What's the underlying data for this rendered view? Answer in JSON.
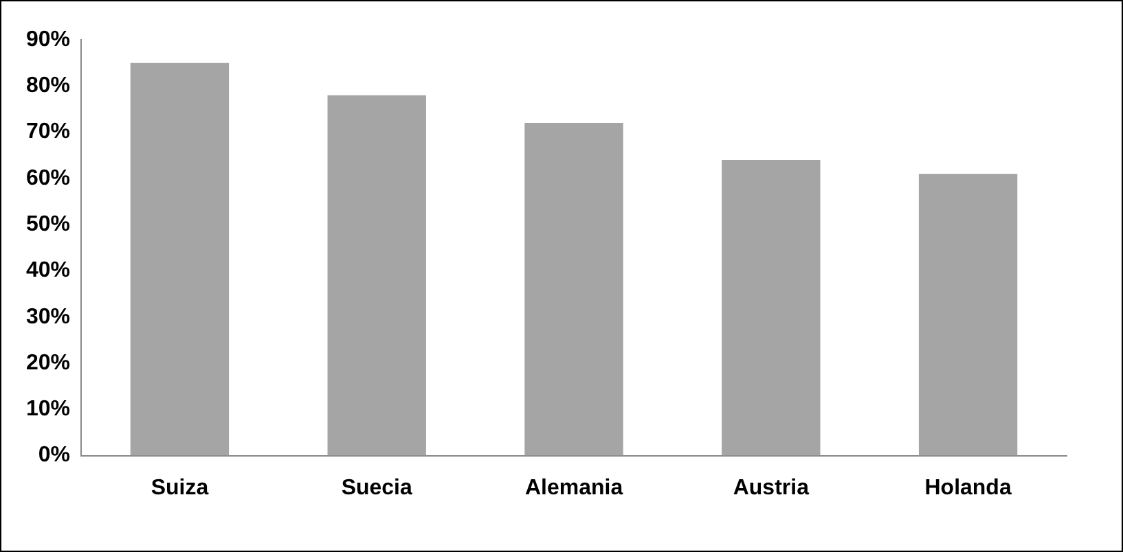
{
  "chart_data": {
    "type": "bar",
    "categories": [
      "Suiza",
      "Suecia",
      "Alemania",
      "Austria",
      "Holanda"
    ],
    "values": [
      85,
      78,
      72,
      64,
      61
    ],
    "color": "#a5a5a5",
    "ylim": [
      0,
      90
    ],
    "yticks": [
      {
        "value": 0,
        "label": "0%"
      },
      {
        "value": 10,
        "label": "10%"
      },
      {
        "value": 20,
        "label": "20%"
      },
      {
        "value": 30,
        "label": "30%"
      },
      {
        "value": 40,
        "label": "40%"
      },
      {
        "value": 50,
        "label": "50%"
      },
      {
        "value": 60,
        "label": "60%"
      },
      {
        "value": 70,
        "label": "70%"
      },
      {
        "value": 80,
        "label": "80%"
      },
      {
        "value": 90,
        "label": "90%"
      }
    ],
    "grid": false,
    "legend": false
  }
}
